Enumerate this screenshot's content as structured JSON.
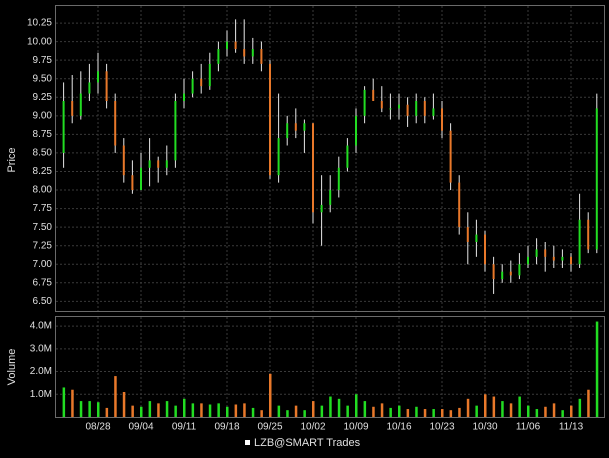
{
  "chart_data": {
    "type": "ohlc",
    "y_label": "Price",
    "y2_label": "Volume",
    "legend": "LZB@SMART Trades",
    "legend_position": "bottom",
    "grid": true,
    "up_color": "#22dd22",
    "down_color": "#e8782a",
    "range_color": "#e8e8e8",
    "categories": [
      null,
      null,
      null,
      null,
      "08/28",
      null,
      null,
      null,
      null,
      "09/04",
      null,
      null,
      null,
      null,
      "09/11",
      null,
      null,
      null,
      null,
      "09/18",
      null,
      null,
      null,
      null,
      "09/25",
      null,
      null,
      null,
      null,
      "10/02",
      null,
      null,
      null,
      null,
      "10/09",
      null,
      null,
      null,
      null,
      "10/16",
      null,
      null,
      null,
      null,
      "10/23",
      null,
      null,
      null,
      null,
      "10/30",
      null,
      null,
      null,
      null,
      "11/06",
      null,
      null,
      null,
      null,
      "11/13",
      null,
      null,
      null
    ],
    "open": [
      8.5,
      9.2,
      9.0,
      9.3,
      9.45,
      9.6,
      9.2,
      8.6,
      8.2,
      8.0,
      8.3,
      8.4,
      8.3,
      8.4,
      9.2,
      9.3,
      9.5,
      9.4,
      9.7,
      9.9,
      10.0,
      9.9,
      9.8,
      9.9,
      9.7,
      8.2,
      8.7,
      8.9,
      8.8,
      8.9,
      7.7,
      7.8,
      8.0,
      8.3,
      8.6,
      9.0,
      9.35,
      9.2,
      9.1,
      9.1,
      9.15,
      9.0,
      9.2,
      9.0,
      9.1,
      8.8,
      8.1,
      7.5,
      7.3,
      7.4,
      7.0,
      6.8,
      6.9,
      6.85,
      7.0,
      7.1,
      7.2,
      7.1,
      7.05,
      7.1,
      7.0,
      7.6,
      7.2
    ],
    "high": [
      9.45,
      9.55,
      9.6,
      9.7,
      9.85,
      9.7,
      9.3,
      8.7,
      8.4,
      8.5,
      8.7,
      8.45,
      8.6,
      9.3,
      9.5,
      9.6,
      9.7,
      9.85,
      10.0,
      10.15,
      10.3,
      10.3,
      10.05,
      10.0,
      9.75,
      9.3,
      9.0,
      9.1,
      8.95,
      8.9,
      8.2,
      8.2,
      8.45,
      8.7,
      9.1,
      9.4,
      9.5,
      9.4,
      9.3,
      9.3,
      9.25,
      9.3,
      9.25,
      9.3,
      9.2,
      8.9,
      8.2,
      7.7,
      7.6,
      7.45,
      7.1,
      7.0,
      7.05,
      7.15,
      7.25,
      7.35,
      7.3,
      7.25,
      7.2,
      7.15,
      7.95,
      7.7,
      9.3
    ],
    "low": [
      8.3,
      8.9,
      8.95,
      9.2,
      9.3,
      9.1,
      8.5,
      8.1,
      7.95,
      8.0,
      8.05,
      8.1,
      8.2,
      8.3,
      9.1,
      9.25,
      9.3,
      9.35,
      9.6,
      9.8,
      9.85,
      9.7,
      9.7,
      9.6,
      8.15,
      8.1,
      8.6,
      8.7,
      8.5,
      7.55,
      7.25,
      7.7,
      7.9,
      8.25,
      8.5,
      8.9,
      9.2,
      9.05,
      8.95,
      8.95,
      8.85,
      8.9,
      8.9,
      8.95,
      8.7,
      8.0,
      7.4,
      7.0,
      7.1,
      6.9,
      6.6,
      6.75,
      6.75,
      6.8,
      6.95,
      7.0,
      6.9,
      6.95,
      6.95,
      6.9,
      6.95,
      7.15,
      7.15
    ],
    "close": [
      9.2,
      9.0,
      9.3,
      9.45,
      9.6,
      9.2,
      8.6,
      8.2,
      8.0,
      8.3,
      8.4,
      8.3,
      8.4,
      9.2,
      9.3,
      9.5,
      9.4,
      9.7,
      9.9,
      10.0,
      9.9,
      9.8,
      9.9,
      9.7,
      8.2,
      8.7,
      8.9,
      8.8,
      8.9,
      7.7,
      7.8,
      8.0,
      8.3,
      8.6,
      9.0,
      9.35,
      9.2,
      9.1,
      9.1,
      9.15,
      9.0,
      9.2,
      9.0,
      9.1,
      8.8,
      8.1,
      7.5,
      7.3,
      7.4,
      7.0,
      6.8,
      6.9,
      6.85,
      7.0,
      7.1,
      7.2,
      7.1,
      7.05,
      7.1,
      7.0,
      7.6,
      7.2,
      9.1
    ],
    "volume": [
      1300000,
      1200000,
      700000,
      700000,
      650000,
      400000,
      1800000,
      1100000,
      500000,
      450000,
      700000,
      600000,
      700000,
      500000,
      800000,
      600000,
      600000,
      550000,
      600000,
      450000,
      550000,
      600000,
      400000,
      300000,
      1900000,
      500000,
      300000,
      500000,
      300000,
      700000,
      500000,
      900000,
      800000,
      500000,
      1000000,
      700000,
      450000,
      600000,
      400000,
      500000,
      350000,
      450000,
      350000,
      350000,
      350000,
      300000,
      400000,
      800000,
      500000,
      1000000,
      900000,
      700000,
      600000,
      900000,
      500000,
      350000,
      450000,
      600000,
      300000,
      500000,
      800000,
      1200000,
      4200000
    ],
    "ylim": [
      6.37,
      10.48
    ],
    "yticks": [
      {
        "value": 6.5,
        "label": "6.50"
      },
      {
        "value": 6.75,
        "label": "6.75"
      },
      {
        "value": 7,
        "label": "7.00"
      },
      {
        "value": 7.25,
        "label": "7.25"
      },
      {
        "value": 7.5,
        "label": "7.50"
      },
      {
        "value": 7.75,
        "label": "7.75"
      },
      {
        "value": 8,
        "label": "8.00"
      },
      {
        "value": 8.25,
        "label": "8.25"
      },
      {
        "value": 8.5,
        "label": "8.50"
      },
      {
        "value": 8.75,
        "label": "8.75"
      },
      {
        "value": 9,
        "label": "9.00"
      },
      {
        "value": 9.25,
        "label": "9.25"
      },
      {
        "value": 9.5,
        "label": "9.50"
      },
      {
        "value": 9.75,
        "label": "9.75"
      },
      {
        "value": 10,
        "label": "10.00"
      },
      {
        "value": 10.25,
        "label": "10.25"
      }
    ],
    "y2lim": [
      0,
      4400000
    ],
    "y2ticks": [
      {
        "value": 1000000,
        "label": "1.0M"
      },
      {
        "value": 2000000,
        "label": "2.0M"
      },
      {
        "value": 3000000,
        "label": "3.0M"
      },
      {
        "value": 4000000,
        "label": "4.0M"
      }
    ]
  }
}
